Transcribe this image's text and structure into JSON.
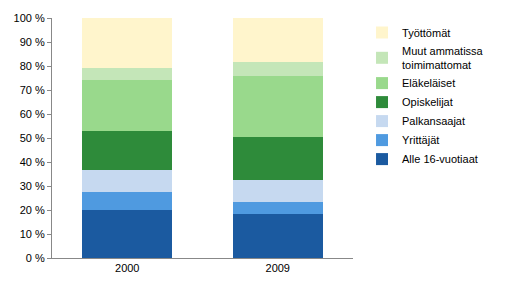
{
  "chart_data": {
    "type": "bar",
    "stacked": true,
    "categories": [
      "2000",
      "2009"
    ],
    "series": [
      {
        "name": "Alle 16-vuotiaat",
        "color": "#1b5aa0",
        "values": [
          20,
          18.5
        ]
      },
      {
        "name": "Yrittäjät",
        "color": "#4f9ae0",
        "values": [
          7.5,
          5
        ]
      },
      {
        "name": "Palkansaajat",
        "color": "#c6d9f0",
        "values": [
          9,
          9
        ]
      },
      {
        "name": "Opiskelijat",
        "color": "#2e8b3a",
        "values": [
          16.5,
          18
        ]
      },
      {
        "name": "Eläkeläiset",
        "color": "#99d98c",
        "values": [
          21,
          25.5
        ]
      },
      {
        "name": "Muut ammatissa toimimattomat",
        "color": "#c4e6b8",
        "values": [
          5,
          5.5
        ]
      },
      {
        "name": "Työttömät",
        "color": "#fff5cc",
        "values": [
          21,
          18.5
        ]
      }
    ],
    "ylim": [
      0,
      100
    ],
    "yticks": [
      {
        "value": 0,
        "label": "0 %"
      },
      {
        "value": 10,
        "label": "10 %"
      },
      {
        "value": 20,
        "label": "20 %"
      },
      {
        "value": 30,
        "label": "30 %"
      },
      {
        "value": 40,
        "label": "40 %"
      },
      {
        "value": 50,
        "label": "50 %"
      },
      {
        "value": 60,
        "label": "60 %"
      },
      {
        "value": 70,
        "label": "70 %"
      },
      {
        "value": 80,
        "label": "80 %"
      },
      {
        "value": 90,
        "label": "90 %"
      },
      {
        "value": 100,
        "label": "100 %"
      }
    ],
    "grid": false,
    "legend": "right"
  }
}
